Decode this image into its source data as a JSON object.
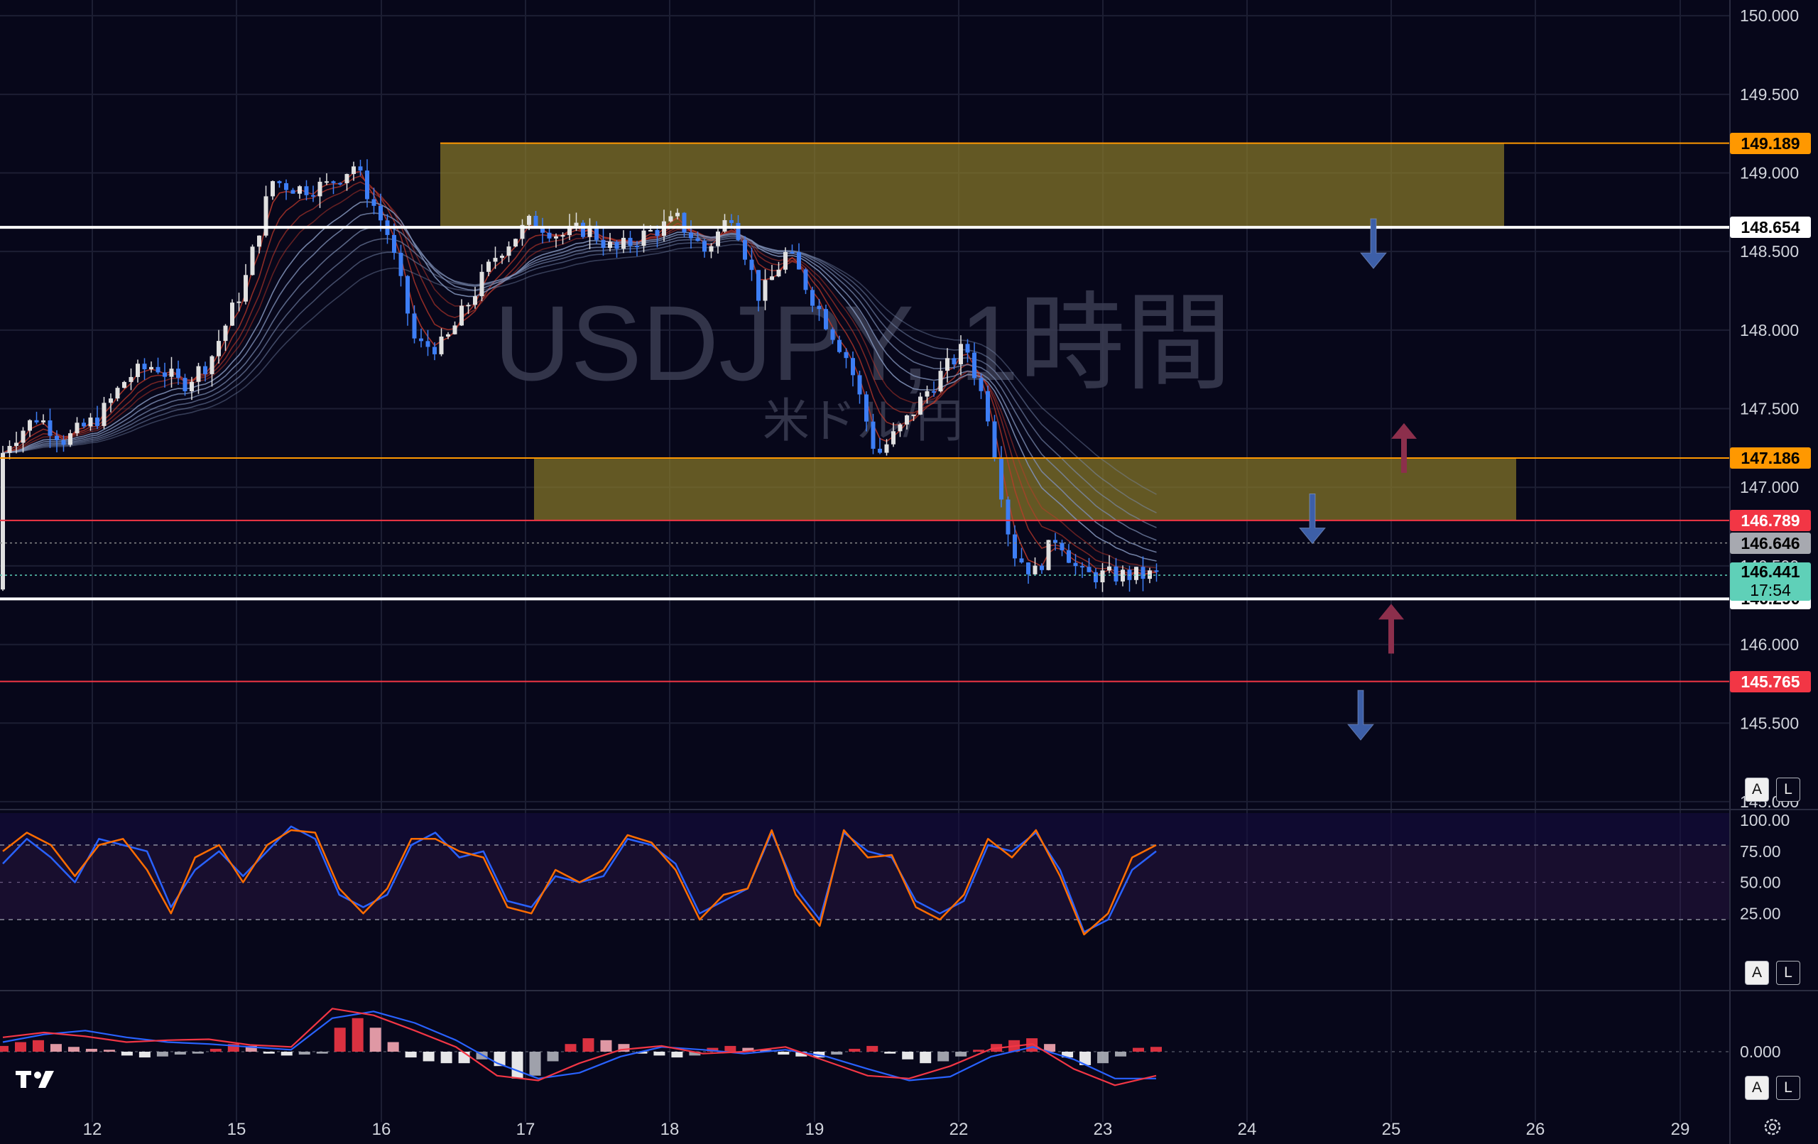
{
  "chart_data": [
    {
      "type": "candlestick",
      "title": "USDJPY, 1時間",
      "subtitle": "米ドル/円",
      "x_ticks": [
        "12",
        "15",
        "16",
        "17",
        "18",
        "19",
        "22",
        "23",
        "24",
        "25",
        "26",
        "29"
      ],
      "y_ticks": [
        "150.000",
        "149.500",
        "149.000",
        "148.500",
        "148.000",
        "147.500",
        "147.000",
        "146.500",
        "146.000",
        "145.500",
        "145.000"
      ],
      "ylim": [
        144.95,
        150.1
      ],
      "grid": true,
      "price_series": [
        [
          "12",
          146.35
        ],
        [
          "12",
          147.0
        ],
        [
          "12",
          147.3
        ],
        [
          "12",
          147.45
        ],
        [
          "12",
          147.3
        ],
        [
          "15",
          147.45
        ],
        [
          "15",
          147.7
        ],
        [
          "15",
          147.78
        ],
        [
          "15",
          147.65
        ],
        [
          "15",
          147.8
        ],
        [
          "16",
          148.3
        ],
        [
          "16",
          148.95
        ],
        [
          "16",
          148.9
        ],
        [
          "16",
          148.92
        ],
        [
          "16",
          149.05
        ],
        [
          "17",
          148.6
        ],
        [
          "17",
          147.9
        ],
        [
          "17",
          147.9
        ],
        [
          "17",
          148.2
        ],
        [
          "17",
          148.5
        ],
        [
          "18",
          148.7
        ],
        [
          "18",
          148.6
        ],
        [
          "18",
          148.65
        ],
        [
          "18",
          148.5
        ],
        [
          "18",
          148.6
        ],
        [
          "19",
          148.7
        ],
        [
          "19",
          148.5
        ],
        [
          "19",
          148.75
        ],
        [
          "19",
          148.2
        ],
        [
          "19",
          148.5
        ],
        [
          "22",
          148.1
        ],
        [
          "22",
          147.8
        ],
        [
          "22",
          147.2
        ],
        [
          "22",
          147.4
        ],
        [
          "22",
          147.65
        ],
        [
          "23",
          147.9
        ],
        [
          "23",
          147.45
        ],
        [
          "23",
          146.6
        ],
        [
          "23",
          146.45
        ],
        [
          "23",
          146.7
        ],
        [
          "23",
          146.44
        ]
      ],
      "levels": [
        {
          "value": 149.189,
          "label": "149.189",
          "color": "#ff9800",
          "style": "orange"
        },
        {
          "value": 148.654,
          "label": "148.654",
          "color": "#ffffff",
          "style": "white"
        },
        {
          "value": 147.186,
          "label": "147.186",
          "color": "#ff9800",
          "style": "orange"
        },
        {
          "value": 146.789,
          "label": "146.789",
          "color": "#f23645",
          "style": "red"
        },
        {
          "value": 146.29,
          "label": "146.290",
          "color": "#ffffff",
          "style": "white"
        },
        {
          "value": 145.765,
          "label": "145.765",
          "color": "#f23645",
          "style": "red"
        }
      ],
      "zones": [
        {
          "from_x": "16",
          "to_x": "25",
          "y_low": 148.654,
          "y_high": 149.189
        },
        {
          "from_x": "17",
          "to_x": "26",
          "y_low": 146.789,
          "y_high": 147.186
        }
      ],
      "current_price": {
        "label": "146.441",
        "countdown": "17:54"
      },
      "prev_close": {
        "label": "146.646"
      },
      "arrows": [
        {
          "direction": "down",
          "x": "25",
          "y": 148.55,
          "color": "blue"
        },
        {
          "direction": "up",
          "x": "25",
          "y": 147.25,
          "color": "red"
        },
        {
          "direction": "down",
          "x": "24",
          "y": 146.8,
          "color": "blue"
        },
        {
          "direction": "up",
          "x": "25",
          "y": 146.1,
          "color": "red"
        },
        {
          "direction": "down",
          "x": "25",
          "y": 145.55,
          "color": "blue"
        }
      ],
      "colors": {
        "up": "#e0e0e0",
        "down": "#3d7ef5",
        "ema_fast": "#c0392b",
        "ema_slow": "#7e8fb5",
        "zone": "#8a7a2a"
      }
    },
    {
      "type": "line",
      "title": "",
      "y_ticks": [
        "100.00",
        "75.00",
        "50.00",
        "25.00"
      ],
      "ylim": [
        0,
        100
      ],
      "bands": [
        20,
        80
      ],
      "series": [
        {
          "color": "#2962ff",
          "values": [
            65,
            85,
            70,
            50,
            85,
            80,
            75,
            30,
            60,
            75,
            55,
            75,
            95,
            85,
            40,
            30,
            40,
            80,
            90,
            70,
            75,
            35,
            30,
            55,
            50,
            55,
            85,
            80,
            65,
            25,
            35,
            45,
            90,
            45,
            20,
            90,
            75,
            70,
            35,
            25,
            35,
            80,
            75,
            90,
            60,
            10,
            20,
            60,
            75
          ]
        },
        {
          "color": "#ff6d00",
          "values": [
            75,
            90,
            80,
            55,
            80,
            85,
            60,
            25,
            70,
            80,
            50,
            80,
            92,
            90,
            45,
            25,
            45,
            85,
            85,
            75,
            70,
            30,
            25,
            60,
            50,
            60,
            88,
            82,
            60,
            20,
            40,
            45,
            92,
            40,
            15,
            92,
            70,
            72,
            30,
            20,
            40,
            85,
            70,
            92,
            55,
            8,
            25,
            70,
            80
          ]
        }
      ]
    },
    {
      "type": "bar",
      "title": "",
      "y_ticks": [
        "0.000"
      ],
      "ylim": [
        -0.6,
        0.6
      ],
      "histogram": [
        0.06,
        0.1,
        0.12,
        0.08,
        0.05,
        0.03,
        0.02,
        -0.04,
        -0.06,
        -0.05,
        -0.03,
        -0.02,
        0.03,
        0.08,
        0.06,
        -0.02,
        -0.04,
        -0.03,
        -0.02,
        0.25,
        0.35,
        0.25,
        0.1,
        -0.06,
        -0.1,
        -0.12,
        -0.12,
        -0.08,
        -0.15,
        -0.28,
        -0.25,
        -0.1,
        0.08,
        0.14,
        0.12,
        0.08,
        -0.02,
        -0.04,
        -0.06,
        -0.04,
        0.04,
        0.06,
        0.04,
        0.02,
        -0.03,
        -0.05,
        -0.06,
        -0.03,
        0.03,
        0.06,
        -0.02,
        -0.08,
        -0.12,
        -0.1,
        -0.05,
        0.02,
        0.08,
        0.12,
        0.14,
        0.08,
        -0.06,
        -0.14,
        -0.12,
        -0.05,
        0.04,
        0.05
      ],
      "series": [
        {
          "color": "#2962ff",
          "values": [
            0.1,
            0.18,
            0.22,
            0.15,
            0.1,
            0.08,
            0.05,
            0.02,
            0.35,
            0.42,
            0.3,
            0.12,
            -0.12,
            -0.28,
            -0.22,
            -0.05,
            0.05,
            0.02,
            -0.02,
            0.02,
            -0.05,
            -0.18,
            -0.3,
            -0.26,
            -0.05,
            0.05,
            -0.08,
            -0.28,
            -0.28
          ]
        },
        {
          "color": "#f23645",
          "values": [
            0.15,
            0.2,
            0.16,
            0.1,
            0.12,
            0.13,
            0.07,
            0.05,
            0.45,
            0.38,
            0.22,
            0.05,
            -0.25,
            -0.3,
            -0.12,
            0.02,
            0.06,
            -0.02,
            0.0,
            0.05,
            -0.1,
            -0.25,
            -0.28,
            -0.15,
            0.03,
            0.08,
            -0.18,
            -0.35,
            -0.25
          ]
        }
      ]
    }
  ],
  "buttons": {
    "auto": "A",
    "log": "L"
  }
}
